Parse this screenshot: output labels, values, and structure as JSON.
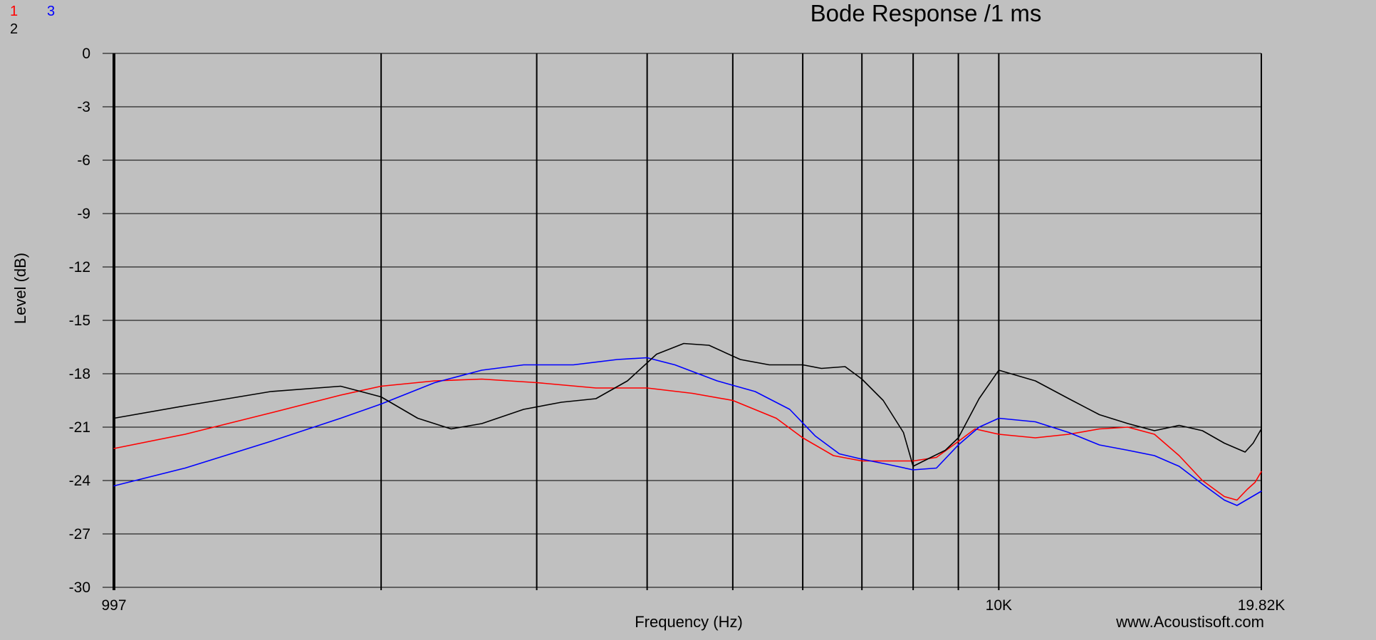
{
  "chart_data": {
    "type": "line",
    "title": "Bode Response /1 ms",
    "xlabel": "Frequency (Hz)",
    "ylabel": "Level (dB)",
    "watermark": "www.Acoustisoft.com",
    "x_scale": "log",
    "xlim": [
      997,
      19820
    ],
    "ylim": [
      -30,
      0
    ],
    "y_ticks": [
      "0",
      "-3",
      "-6",
      "-9",
      "-12",
      "-15",
      "-18",
      "-21",
      "-24",
      "-27",
      "-30"
    ],
    "x_tick_labels": [
      {
        "label": "997",
        "value": 997
      },
      {
        "label": "10K",
        "value": 10000
      },
      {
        "label": "19.82K",
        "value": 19820
      }
    ],
    "x_grid_values": [
      997,
      2000,
      3000,
      4000,
      5000,
      6000,
      7000,
      8000,
      9000,
      10000,
      19820
    ],
    "grid": true,
    "legend": {
      "placement": "top-left",
      "entries": [
        {
          "label": "1",
          "color": "#ff0000"
        },
        {
          "label": "3",
          "color": "#0000ff"
        },
        {
          "label": "2",
          "color": "#000000"
        }
      ]
    },
    "series": [
      {
        "key": "1",
        "color": "#ff0000",
        "points": [
          [
            997,
            -22.2
          ],
          [
            1200,
            -21.4
          ],
          [
            1500,
            -20.2
          ],
          [
            1800,
            -19.2
          ],
          [
            2000,
            -18.7
          ],
          [
            2300,
            -18.4
          ],
          [
            2600,
            -18.3
          ],
          [
            3000,
            -18.5
          ],
          [
            3500,
            -18.8
          ],
          [
            4000,
            -18.8
          ],
          [
            4500,
            -19.1
          ],
          [
            5000,
            -19.5
          ],
          [
            5600,
            -20.5
          ],
          [
            6000,
            -21.6
          ],
          [
            6500,
            -22.6
          ],
          [
            7000,
            -22.9
          ],
          [
            7500,
            -22.9
          ],
          [
            8000,
            -22.9
          ],
          [
            8500,
            -22.7
          ],
          [
            9000,
            -21.8
          ],
          [
            9400,
            -21.1
          ],
          [
            10000,
            -21.4
          ],
          [
            11000,
            -21.6
          ],
          [
            12000,
            -21.4
          ],
          [
            13000,
            -21.1
          ],
          [
            14000,
            -21.0
          ],
          [
            15000,
            -21.4
          ],
          [
            16000,
            -22.6
          ],
          [
            17000,
            -24.0
          ],
          [
            18000,
            -24.9
          ],
          [
            18600,
            -25.1
          ],
          [
            19100,
            -24.5
          ],
          [
            19500,
            -24.1
          ],
          [
            19820,
            -23.5
          ]
        ]
      },
      {
        "key": "3",
        "color": "#0000ff",
        "points": [
          [
            997,
            -24.3
          ],
          [
            1200,
            -23.3
          ],
          [
            1500,
            -21.8
          ],
          [
            1800,
            -20.5
          ],
          [
            2000,
            -19.7
          ],
          [
            2300,
            -18.5
          ],
          [
            2600,
            -17.8
          ],
          [
            2900,
            -17.5
          ],
          [
            3300,
            -17.5
          ],
          [
            3700,
            -17.2
          ],
          [
            4000,
            -17.1
          ],
          [
            4300,
            -17.5
          ],
          [
            4800,
            -18.4
          ],
          [
            5300,
            -19.0
          ],
          [
            5800,
            -20.0
          ],
          [
            6200,
            -21.5
          ],
          [
            6600,
            -22.5
          ],
          [
            7000,
            -22.8
          ],
          [
            7500,
            -23.1
          ],
          [
            8000,
            -23.4
          ],
          [
            8500,
            -23.3
          ],
          [
            9000,
            -22.0
          ],
          [
            9500,
            -21.0
          ],
          [
            10000,
            -20.5
          ],
          [
            11000,
            -20.7
          ],
          [
            12000,
            -21.3
          ],
          [
            13000,
            -22.0
          ],
          [
            14000,
            -22.3
          ],
          [
            15000,
            -22.6
          ],
          [
            16000,
            -23.2
          ],
          [
            17000,
            -24.2
          ],
          [
            18000,
            -25.1
          ],
          [
            18600,
            -25.4
          ],
          [
            19200,
            -25.0
          ],
          [
            19820,
            -24.6
          ]
        ]
      },
      {
        "key": "2",
        "color": "#000000",
        "points": [
          [
            997,
            -20.5
          ],
          [
            1200,
            -19.8
          ],
          [
            1500,
            -19.0
          ],
          [
            1800,
            -18.7
          ],
          [
            2000,
            -19.3
          ],
          [
            2200,
            -20.5
          ],
          [
            2400,
            -21.1
          ],
          [
            2600,
            -20.8
          ],
          [
            2900,
            -20.0
          ],
          [
            3200,
            -19.6
          ],
          [
            3500,
            -19.4
          ],
          [
            3800,
            -18.4
          ],
          [
            4100,
            -16.9
          ],
          [
            4400,
            -16.3
          ],
          [
            4700,
            -16.4
          ],
          [
            5100,
            -17.2
          ],
          [
            5500,
            -17.5
          ],
          [
            6000,
            -17.5
          ],
          [
            6300,
            -17.7
          ],
          [
            6700,
            -17.6
          ],
          [
            7000,
            -18.3
          ],
          [
            7400,
            -19.5
          ],
          [
            7800,
            -21.3
          ],
          [
            8000,
            -23.2
          ],
          [
            8300,
            -22.8
          ],
          [
            8700,
            -22.3
          ],
          [
            9000,
            -21.6
          ],
          [
            9500,
            -19.4
          ],
          [
            10000,
            -17.8
          ],
          [
            11000,
            -18.4
          ],
          [
            12000,
            -19.4
          ],
          [
            13000,
            -20.3
          ],
          [
            14000,
            -20.8
          ],
          [
            15000,
            -21.2
          ],
          [
            16000,
            -20.9
          ],
          [
            17000,
            -21.2
          ],
          [
            18000,
            -21.9
          ],
          [
            19000,
            -22.4
          ],
          [
            19400,
            -21.9
          ],
          [
            19820,
            -21.1
          ]
        ]
      }
    ]
  }
}
